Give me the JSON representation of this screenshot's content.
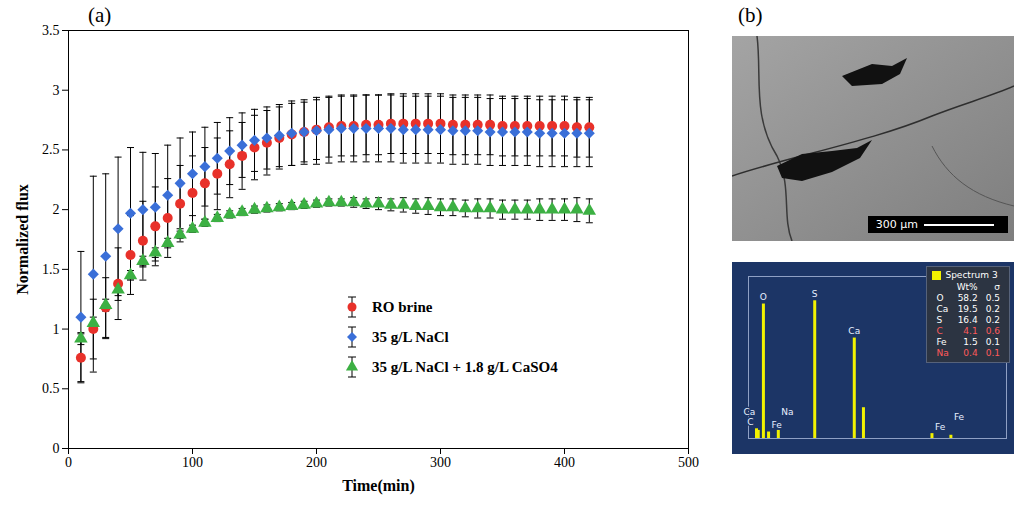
{
  "chart_data": [
    {
      "type": "scatter",
      "panel": "(a)",
      "x_label": "Time(min)",
      "y_label": "Normalized flux",
      "x": [
        10,
        20,
        30,
        40,
        50,
        60,
        70,
        80,
        90,
        100,
        110,
        120,
        130,
        140,
        150,
        160,
        170,
        180,
        190,
        200,
        210,
        220,
        230,
        240,
        250,
        260,
        270,
        280,
        290,
        300,
        310,
        320,
        330,
        340,
        350,
        360,
        370,
        380,
        390,
        400,
        410,
        420
      ],
      "series": [
        {
          "name": "RO brine",
          "color": "#e8312a",
          "marker": "circle",
          "values": [
            0.76,
            1.0,
            1.18,
            1.38,
            1.62,
            1.74,
            1.86,
            1.93,
            2.05,
            2.14,
            2.22,
            2.3,
            2.38,
            2.45,
            2.52,
            2.56,
            2.6,
            2.63,
            2.65,
            2.67,
            2.69,
            2.7,
            2.7,
            2.71,
            2.71,
            2.72,
            2.72,
            2.72,
            2.72,
            2.72,
            2.71,
            2.71,
            2.71,
            2.71,
            2.7,
            2.7,
            2.7,
            2.7,
            2.7,
            2.7,
            2.69,
            2.69
          ],
          "errors": [
            0.2,
            0.25,
            0.25,
            0.3,
            0.33,
            0.33,
            0.33,
            0.33,
            0.32,
            0.31,
            0.3,
            0.3,
            0.28,
            0.28,
            0.27,
            0.27,
            0.26,
            0.26,
            0.25,
            0.25,
            0.25,
            0.25,
            0.25,
            0.25,
            0.25,
            0.25,
            0.25,
            0.25,
            0.25,
            0.25,
            0.25,
            0.25,
            0.25,
            0.25,
            0.25,
            0.25,
            0.25,
            0.25,
            0.25,
            0.25,
            0.25,
            0.25
          ]
        },
        {
          "name": "35 g/L NaCl",
          "color": "#3a6fd8",
          "marker": "diamond",
          "values": [
            1.1,
            1.46,
            1.61,
            1.84,
            1.97,
            2.0,
            2.02,
            2.12,
            2.22,
            2.3,
            2.36,
            2.43,
            2.49,
            2.54,
            2.58,
            2.6,
            2.62,
            2.64,
            2.65,
            2.66,
            2.67,
            2.68,
            2.68,
            2.68,
            2.68,
            2.68,
            2.67,
            2.67,
            2.67,
            2.67,
            2.66,
            2.66,
            2.66,
            2.65,
            2.65,
            2.65,
            2.65,
            2.64,
            2.64,
            2.64,
            2.64,
            2.64
          ],
          "errors": [
            0.55,
            0.82,
            0.69,
            0.6,
            0.55,
            0.48,
            0.45,
            0.42,
            0.38,
            0.35,
            0.33,
            0.3,
            0.28,
            0.27,
            0.26,
            0.26,
            0.26,
            0.27,
            0.27,
            0.28,
            0.28,
            0.28,
            0.28,
            0.28,
            0.28,
            0.28,
            0.28,
            0.28,
            0.28,
            0.28,
            0.28,
            0.28,
            0.28,
            0.28,
            0.28,
            0.28,
            0.28,
            0.28,
            0.28,
            0.28,
            0.28,
            0.28
          ]
        },
        {
          "name": "35 g/L NaCl + 1.8 g/L CaSO4",
          "color": "#3cb043",
          "marker": "triangle",
          "values": [
            0.92,
            1.05,
            1.2,
            1.33,
            1.45,
            1.57,
            1.64,
            1.72,
            1.79,
            1.84,
            1.89,
            1.93,
            1.96,
            1.98,
            2.0,
            2.01,
            2.02,
            2.03,
            2.04,
            2.05,
            2.06,
            2.06,
            2.06,
            2.05,
            2.05,
            2.04,
            2.04,
            2.03,
            2.03,
            2.02,
            2.02,
            2.01,
            2.01,
            2.01,
            2.0,
            2.0,
            2.0,
            2.0,
            2.0,
            2.0,
            2.0,
            1.99
          ],
          "errors": [
            0.05,
            0.05,
            0.05,
            0.05,
            0.04,
            0.04,
            0.04,
            0.04,
            0.03,
            0.03,
            0.03,
            0.03,
            0.03,
            0.03,
            0.03,
            0.03,
            0.03,
            0.03,
            0.03,
            0.03,
            0.03,
            0.03,
            0.04,
            0.04,
            0.05,
            0.05,
            0.06,
            0.06,
            0.07,
            0.07,
            0.07,
            0.07,
            0.08,
            0.08,
            0.08,
            0.08,
            0.08,
            0.09,
            0.09,
            0.09,
            0.1,
            0.1
          ]
        }
      ],
      "xlim": [
        0,
        500
      ],
      "xticks": [
        0,
        100,
        200,
        300,
        400,
        500
      ],
      "ylim": [
        0,
        3.5
      ],
      "yticks": [
        0,
        0.5,
        1,
        1.5,
        2,
        2.5,
        3,
        3.5
      ],
      "legend": "bottom"
    },
    {
      "type": "spectrum",
      "panel": "(b)",
      "legend_label": "Spectrum 3",
      "color": "#f2f200",
      "tick_labels": false,
      "xlim": [
        0,
        9
      ],
      "ylim": [
        0,
        10
      ],
      "peaks": [
        {
          "label": "C",
          "x": 0.28,
          "value": 0.6
        },
        {
          "label": "Ca",
          "x": 0.34,
          "value": 0.5
        },
        {
          "label": "O",
          "x": 0.52,
          "value": 8.3
        },
        {
          "label": "Fe",
          "x": 0.7,
          "value": 0.4
        },
        {
          "label": "Na",
          "x": 1.04,
          "value": 0.5
        },
        {
          "label": "S",
          "x": 2.31,
          "value": 8.5
        },
        {
          "label": "Ca",
          "x": 3.69,
          "value": 6.2
        },
        {
          "label": null,
          "x": 4.01,
          "value": 1.9
        },
        {
          "label": "Fe",
          "x": 6.4,
          "value": 0.3
        },
        {
          "label": "Fe",
          "x": 7.06,
          "value": 0.2
        }
      ],
      "table": {
        "columns": [
          "Wt%",
          "σ"
        ],
        "rows": [
          {
            "element": "O",
            "wt": 58.2,
            "sigma": 0.5,
            "color": "#ffffff"
          },
          {
            "element": "Ca",
            "wt": 19.5,
            "sigma": 0.2,
            "color": "#ffffff"
          },
          {
            "element": "S",
            "wt": 16.4,
            "sigma": 0.2,
            "color": "#ffffff"
          },
          {
            "element": "C",
            "wt": 4.1,
            "sigma": 0.6,
            "color": "#ff5a5a"
          },
          {
            "element": "Fe",
            "wt": 1.5,
            "sigma": 0.1,
            "color": "#ffffff"
          },
          {
            "element": "Na",
            "wt": 0.4,
            "sigma": 0.1,
            "color": "#ff5a5a"
          }
        ]
      }
    }
  ],
  "sem_image": {
    "scale_bar": "300 μm"
  }
}
